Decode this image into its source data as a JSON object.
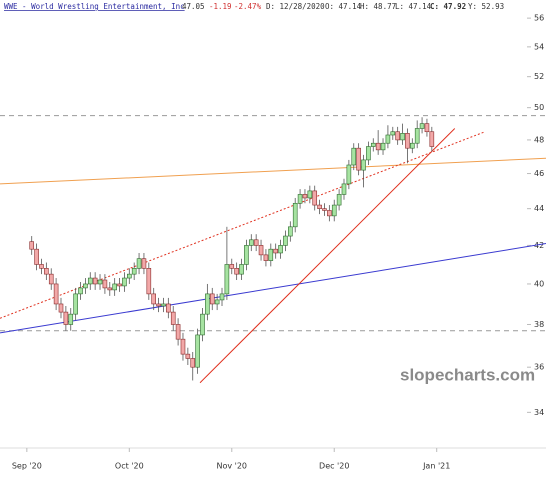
{
  "header": {
    "symbol": "WWE - World Wrestling Entertainment, Inc",
    "last": "47.05",
    "change": "-1.19",
    "change_pct": "-2.47%",
    "date": "D: 12/28/2020",
    "open": "O: 47.14",
    "high": "H: 48.77",
    "low": "L: 47.14",
    "close": "C: 47.92",
    "y": "Y: 52.93"
  },
  "watermark": "slopecharts.com",
  "chart_data": {
    "type": "candlestick",
    "log_scale": true,
    "xlim": [
      -5.5,
      106.4
    ],
    "xticks": [
      {
        "value": 0,
        "label": "Sep '20"
      },
      {
        "value": 21,
        "label": "Oct '20"
      },
      {
        "value": 42,
        "label": "Nov '20"
      },
      {
        "value": 63,
        "label": "Dec '20"
      },
      {
        "value": 84,
        "label": "Jan '21"
      }
    ],
    "ylim": [
      32.5,
      57.3
    ],
    "yticks": [
      34,
      36,
      38,
      40,
      42,
      44,
      46,
      48,
      50,
      52,
      54,
      56
    ],
    "up_color": "#a6e3a1",
    "down_color": "#f2a8a8",
    "open": [
      42.2,
      41.8,
      41.0,
      40.8,
      40.5,
      40.0,
      39.0,
      38.6,
      38.0,
      38.5,
      39.5,
      39.8,
      40.0,
      40.3,
      40.0,
      40.2,
      39.8,
      39.7,
      40.0,
      39.9,
      40.3,
      40.5,
      40.8,
      41.3,
      40.8,
      39.5,
      39.0,
      38.9,
      39.0,
      38.6,
      38.0,
      37.3,
      36.6,
      36.4,
      36.0,
      37.5,
      38.5,
      39.5,
      39.0,
      39.2,
      39.5,
      41.0,
      40.8,
      40.5,
      41.0,
      42.0,
      42.3,
      42.0,
      41.5,
      41.2,
      41.8,
      41.6,
      42.0,
      42.5,
      43.0,
      44.3,
      44.8,
      44.6,
      45.0,
      44.2,
      44.0,
      43.9,
      43.6,
      44.2,
      44.8,
      45.4,
      46.5,
      47.5,
      46.2,
      46.8,
      47.6,
      47.8,
      47.4,
      47.8,
      48.3,
      48.5,
      48.0,
      48.4,
      47.5,
      47.8,
      48.7,
      49.0,
      48.5
    ],
    "high": [
      42.5,
      42.1,
      41.3,
      41.1,
      40.8,
      40.3,
      39.3,
      38.9,
      38.8,
      39.8,
      40.1,
      40.3,
      40.6,
      40.6,
      40.5,
      40.5,
      40.1,
      40.3,
      40.3,
      40.6,
      40.8,
      41.1,
      41.6,
      41.6,
      41.1,
      39.8,
      39.3,
      39.3,
      39.3,
      38.9,
      38.3,
      37.6,
      36.9,
      36.7,
      37.8,
      38.8,
      40.0,
      39.8,
      39.5,
      39.8,
      43.0,
      41.3,
      41.1,
      41.3,
      42.3,
      42.6,
      42.6,
      42.3,
      41.8,
      42.1,
      42.1,
      42.3,
      42.8,
      43.3,
      44.6,
      45.1,
      45.1,
      45.3,
      45.3,
      44.5,
      44.3,
      44.2,
      44.5,
      45.1,
      45.7,
      46.8,
      47.8,
      47.8,
      47.1,
      47.9,
      48.1,
      48.6,
      48.1,
      48.9,
      48.8,
      48.8,
      49.0,
      48.7,
      48.1,
      49.2,
      49.4,
      49.3,
      48.8
    ],
    "low": [
      41.5,
      40.7,
      40.5,
      40.2,
      39.7,
      38.7,
      38.3,
      37.7,
      37.7,
      38.2,
      39.2,
      39.5,
      39.7,
      39.7,
      39.7,
      39.5,
      39.4,
      39.4,
      39.6,
      39.6,
      40.0,
      40.2,
      40.5,
      40.5,
      39.2,
      38.7,
      38.6,
      38.6,
      38.3,
      37.7,
      37.0,
      36.3,
      36.1,
      35.4,
      35.7,
      37.2,
      38.2,
      38.7,
      38.7,
      38.9,
      39.2,
      40.5,
      40.2,
      40.2,
      40.7,
      41.7,
      41.7,
      41.2,
      40.9,
      40.9,
      41.3,
      41.3,
      41.7,
      42.2,
      42.7,
      44.0,
      44.3,
      44.3,
      43.9,
      43.7,
      43.6,
      43.3,
      43.3,
      43.9,
      44.5,
      45.1,
      46.2,
      45.9,
      45.2,
      46.5,
      47.3,
      47.1,
      47.1,
      47.5,
      48.0,
      47.7,
      47.7,
      46.6,
      47.2,
      47.5,
      48.4,
      48.2,
      47.3
    ],
    "close": [
      41.8,
      41.0,
      40.8,
      40.5,
      40.0,
      39.0,
      38.6,
      38.0,
      38.5,
      39.5,
      39.8,
      40.0,
      40.3,
      40.0,
      40.2,
      39.8,
      39.7,
      40.0,
      39.9,
      40.3,
      40.5,
      40.8,
      41.3,
      40.8,
      39.5,
      39.0,
      38.9,
      39.0,
      38.6,
      38.0,
      37.3,
      36.6,
      36.4,
      36.0,
      37.5,
      38.5,
      39.5,
      39.0,
      39.2,
      39.5,
      41.0,
      40.8,
      40.5,
      41.0,
      42.0,
      42.3,
      42.0,
      41.5,
      41.2,
      41.8,
      41.6,
      42.0,
      42.5,
      43.0,
      44.3,
      44.8,
      44.6,
      45.0,
      44.2,
      44.0,
      43.9,
      43.6,
      44.2,
      44.8,
      45.4,
      46.5,
      47.5,
      46.2,
      46.8,
      47.6,
      47.8,
      47.4,
      47.8,
      48.3,
      48.5,
      48.0,
      48.4,
      47.5,
      47.8,
      48.7,
      49.0,
      48.5,
      47.6
    ],
    "hlines": [
      49.5,
      37.7
    ],
    "hline_color": "#999999",
    "lines": [
      {
        "color": "#f0a050",
        "style": "solid",
        "x": [
          -5.5,
          106.4
        ],
        "y": [
          45.4,
          46.9
        ]
      },
      {
        "color": "#3a3ad0",
        "style": "solid",
        "x": [
          -5.5,
          106.4
        ],
        "y": [
          37.6,
          42.1
        ]
      },
      {
        "color": "#e0301e",
        "style": "solid",
        "x": [
          35.5,
          87.7
        ],
        "y": [
          35.3,
          48.7
        ]
      },
      {
        "color": "#e0301e",
        "style": "dotted",
        "x": [
          -5.5,
          93.9
        ],
        "y": [
          38.3,
          48.5
        ]
      }
    ]
  }
}
